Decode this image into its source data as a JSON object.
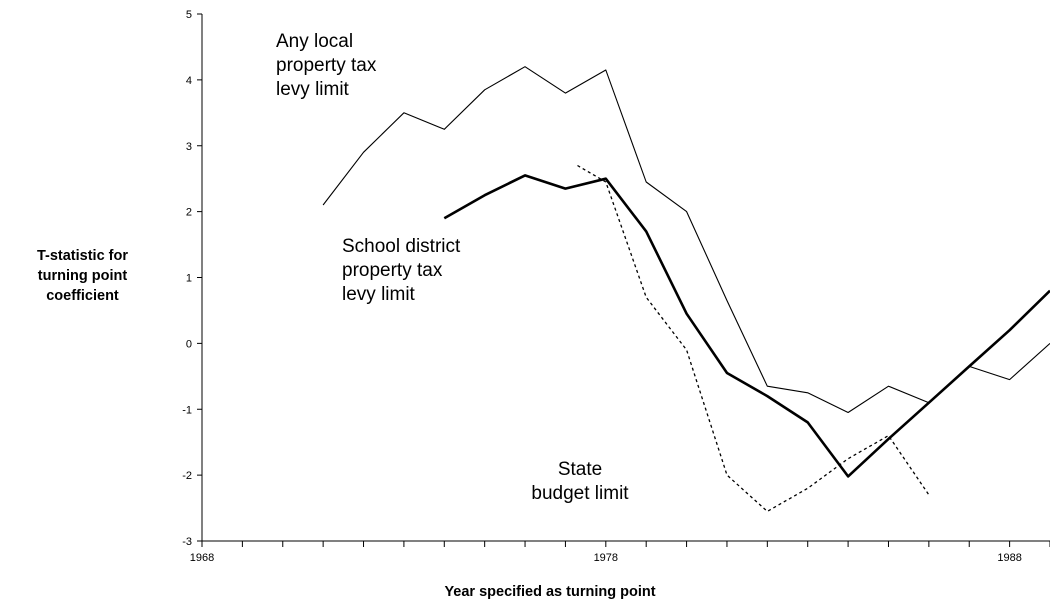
{
  "chart_data": {
    "type": "line",
    "xlabel": "Year specified as turning point",
    "ylabel_lines": [
      "T-statistic for",
      "turning point",
      "coefficient"
    ],
    "xlim": [
      1968,
      1989
    ],
    "ylim": [
      -3,
      5
    ],
    "x_ticks": [
      1968,
      1978,
      1988
    ],
    "y_ticks": [
      -3,
      -2,
      -1,
      0,
      1,
      2,
      3,
      4,
      5
    ],
    "grid": false,
    "legend": "none",
    "series": [
      {
        "style": "thin",
        "label_lines": [
          "Any local",
          "property tax",
          "levy limit"
        ],
        "x": [
          1971,
          1972,
          1973,
          1974,
          1975,
          1976,
          1977,
          1978,
          1979,
          1980,
          1981,
          1982,
          1983,
          1984,
          1985,
          1986,
          1987,
          1988,
          1989
        ],
        "y": [
          2.1,
          2.9,
          3.5,
          3.25,
          3.85,
          4.2,
          3.8,
          4.15,
          2.45,
          2.0,
          0.65,
          -0.65,
          -0.75,
          -1.05,
          -0.65,
          -0.9,
          -0.35,
          -0.55,
          0.0
        ]
      },
      {
        "style": "thick",
        "label_lines": [
          "School district",
          "property tax",
          "levy limit"
        ],
        "x": [
          1974,
          1975,
          1976,
          1977,
          1978,
          1979,
          1980,
          1981,
          1982,
          1983,
          1984,
          1985,
          1986,
          1987,
          1988,
          1989
        ],
        "y": [
          1.9,
          2.25,
          2.55,
          2.35,
          2.5,
          1.7,
          0.45,
          -0.45,
          -0.8,
          -1.2,
          -2.02,
          -1.45,
          -0.9,
          -0.35,
          0.2,
          0.8
        ]
      },
      {
        "style": "dotted",
        "label_lines": [
          "State",
          "budget limit"
        ],
        "x": [
          1977.3,
          1978,
          1979,
          1980,
          1981,
          1982,
          1983,
          1984,
          1985,
          1986
        ],
        "y": [
          2.7,
          2.45,
          0.7,
          -0.1,
          -2.0,
          -2.55,
          -2.2,
          -1.75,
          -1.4,
          -2.3
        ]
      }
    ],
    "tick_interval": 1
  }
}
